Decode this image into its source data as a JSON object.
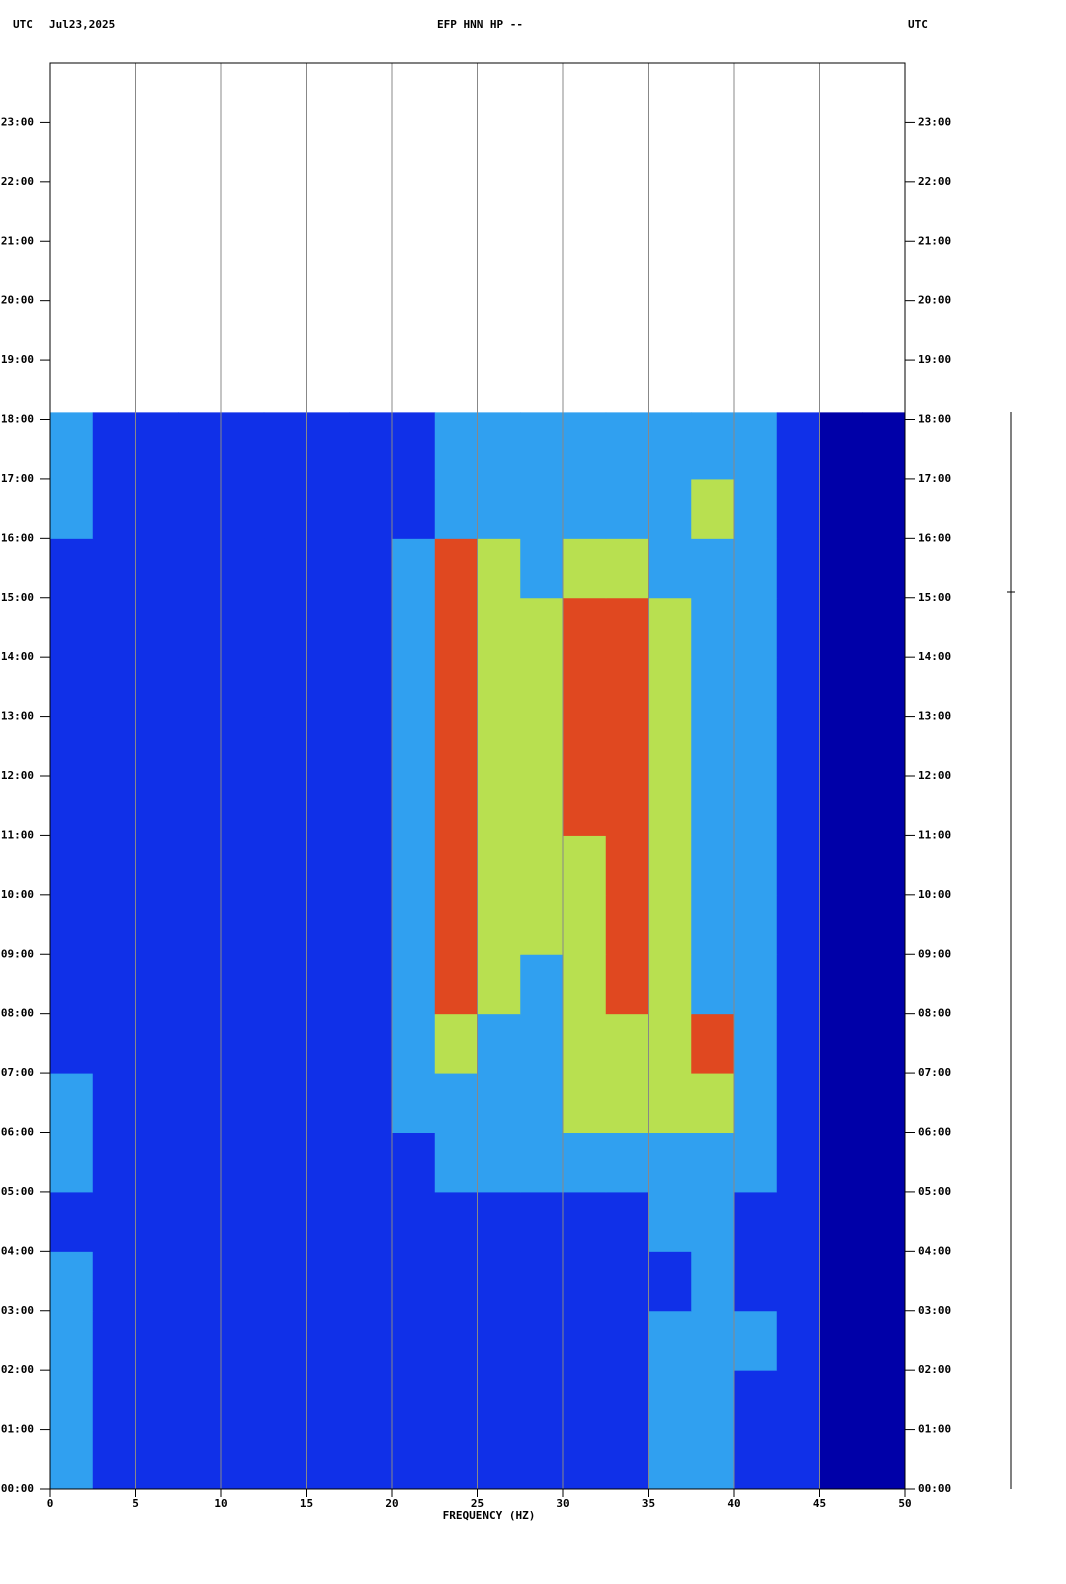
{
  "header": {
    "left_zone": "UTC",
    "date": "Jul23,2025",
    "station": "EFP HNN HP --",
    "right_zone": "UTC"
  },
  "chart_data": {
    "type": "heatmap",
    "xlabel": "FREQUENCY (HZ)",
    "xlim": [
      0,
      50
    ],
    "xticks": [
      0,
      5,
      10,
      15,
      20,
      25,
      30,
      35,
      40,
      45,
      50
    ],
    "ylim": [
      0,
      24
    ],
    "yticks": [
      {
        "value": 0,
        "label": "00:00"
      },
      {
        "value": 1,
        "label": "01:00"
      },
      {
        "value": 2,
        "label": "02:00"
      },
      {
        "value": 3,
        "label": "03:00"
      },
      {
        "value": 4,
        "label": "04:00"
      },
      {
        "value": 5,
        "label": "05:00"
      },
      {
        "value": 6,
        "label": "06:00"
      },
      {
        "value": 7,
        "label": "07:00"
      },
      {
        "value": 8,
        "label": "08:00"
      },
      {
        "value": 9,
        "label": "09:00"
      },
      {
        "value": 10,
        "label": "10:00"
      },
      {
        "value": 11,
        "label": "11:00"
      },
      {
        "value": 12,
        "label": "12:00"
      },
      {
        "value": 13,
        "label": "13:00"
      },
      {
        "value": 14,
        "label": "14:00"
      },
      {
        "value": 15,
        "label": "15:00"
      },
      {
        "value": 16,
        "label": "16:00"
      },
      {
        "value": 17,
        "label": "17:00"
      },
      {
        "value": 18,
        "label": "18:00"
      },
      {
        "value": 19,
        "label": "19:00"
      },
      {
        "value": 20,
        "label": "20:00"
      },
      {
        "value": 21,
        "label": "21:00"
      },
      {
        "value": 22,
        "label": "22:00"
      },
      {
        "value": 23,
        "label": "23:00"
      }
    ],
    "grid": true,
    "colormap": [
      "#0000a8",
      "#1030e8",
      "#30a0f0",
      "#b8e050",
      "#e04820"
    ],
    "x_bins": [
      0,
      2.5,
      5,
      7.5,
      10,
      12.5,
      15,
      17.5,
      20,
      22.5,
      25,
      27.5,
      30,
      32.5,
      35,
      37.5,
      40,
      42.5,
      45,
      47.5,
      50
    ],
    "y_bins": [
      0,
      1,
      2,
      3,
      4,
      5,
      6,
      7,
      8,
      9,
      10,
      11,
      12,
      13,
      14,
      15,
      16,
      17,
      18,
      18.12
    ],
    "values": [
      [
        2,
        1,
        1,
        1,
        1,
        1,
        1,
        1,
        1,
        1,
        1,
        1,
        1,
        1,
        2,
        2,
        1,
        1,
        0,
        0
      ],
      [
        2,
        1,
        1,
        1,
        1,
        1,
        1,
        1,
        1,
        1,
        1,
        1,
        1,
        1,
        2,
        2,
        1,
        1,
        0,
        0
      ],
      [
        2,
        1,
        1,
        1,
        1,
        1,
        1,
        1,
        1,
        1,
        1,
        1,
        1,
        1,
        2,
        2,
        2,
        1,
        0,
        0
      ],
      [
        2,
        1,
        1,
        1,
        1,
        1,
        1,
        1,
        1,
        1,
        1,
        1,
        1,
        1,
        1,
        2,
        1,
        1,
        0,
        0
      ],
      [
        1,
        1,
        1,
        1,
        1,
        1,
        1,
        1,
        1,
        1,
        1,
        1,
        1,
        1,
        2,
        2,
        1,
        1,
        0,
        0
      ],
      [
        2,
        1,
        1,
        1,
        1,
        1,
        1,
        1,
        1,
        2,
        2,
        2,
        2,
        2,
        2,
        2,
        2,
        1,
        0,
        0
      ],
      [
        2,
        1,
        1,
        1,
        1,
        1,
        1,
        1,
        2,
        2,
        2,
        2,
        3,
        3,
        3,
        3,
        2,
        1,
        0,
        0
      ],
      [
        1,
        1,
        1,
        1,
        1,
        1,
        1,
        1,
        2,
        3,
        2,
        2,
        3,
        3,
        3,
        4,
        2,
        1,
        0,
        0
      ],
      [
        1,
        1,
        1,
        1,
        1,
        1,
        1,
        1,
        2,
        4,
        3,
        2,
        3,
        4,
        3,
        2,
        2,
        1,
        0,
        0
      ],
      [
        1,
        1,
        1,
        1,
        1,
        1,
        1,
        1,
        2,
        4,
        3,
        3,
        3,
        4,
        3,
        2,
        2,
        1,
        0,
        0
      ],
      [
        1,
        1,
        1,
        1,
        1,
        1,
        1,
        1,
        2,
        4,
        3,
        3,
        3,
        4,
        3,
        2,
        2,
        1,
        0,
        0
      ],
      [
        1,
        1,
        1,
        1,
        1,
        1,
        1,
        1,
        2,
        4,
        3,
        3,
        4,
        4,
        3,
        2,
        2,
        1,
        0,
        0
      ],
      [
        1,
        1,
        1,
        1,
        1,
        1,
        1,
        1,
        2,
        4,
        3,
        3,
        4,
        4,
        3,
        2,
        2,
        1,
        0,
        0
      ],
      [
        1,
        1,
        1,
        1,
        1,
        1,
        1,
        1,
        2,
        4,
        3,
        3,
        4,
        4,
        3,
        2,
        2,
        1,
        0,
        0
      ],
      [
        1,
        1,
        1,
        1,
        1,
        1,
        1,
        1,
        2,
        4,
        3,
        3,
        4,
        4,
        3,
        2,
        2,
        1,
        0,
        0
      ],
      [
        1,
        1,
        1,
        1,
        1,
        1,
        1,
        1,
        2,
        4,
        3,
        2,
        3,
        3,
        2,
        2,
        2,
        1,
        0,
        0
      ],
      [
        2,
        1,
        1,
        1,
        1,
        1,
        1,
        1,
        1,
        2,
        2,
        2,
        2,
        2,
        2,
        3,
        2,
        1,
        0,
        0
      ],
      [
        2,
        1,
        1,
        1,
        1,
        1,
        1,
        1,
        1,
        2,
        2,
        2,
        2,
        2,
        2,
        2,
        2,
        1,
        0,
        0
      ],
      [
        2,
        1,
        1,
        1,
        1,
        1,
        1,
        1,
        1,
        2,
        2,
        2,
        2,
        2,
        2,
        2,
        2,
        1,
        0,
        0
      ]
    ]
  }
}
